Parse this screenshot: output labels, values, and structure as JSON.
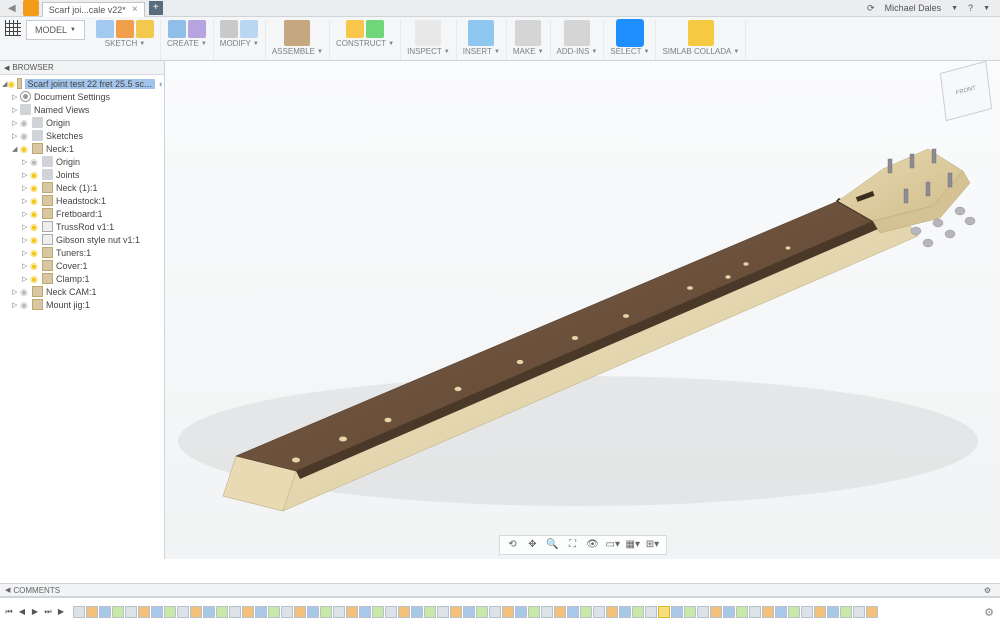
{
  "titlebar": {
    "tab_title": "Scarf joi...cale v22*",
    "user_name": "Michael Dales"
  },
  "toolbar": {
    "model_label": "MODEL",
    "groups": [
      {
        "label": "SKETCH",
        "colors": [
          "#a3c9f0",
          "#f29e4c",
          "#f2c94c"
        ]
      },
      {
        "label": "CREATE",
        "colors": [
          "#8fbfe8",
          "#b7a3e0"
        ]
      },
      {
        "label": "MODIFY",
        "colors": [
          "#c9c9c9",
          "#b9d7f0"
        ]
      },
      {
        "label": "ASSEMBLE",
        "colors": [
          "#c5a880"
        ]
      },
      {
        "label": "CONSTRUCT",
        "colors": [
          "#fac64b",
          "#6fd67a"
        ]
      },
      {
        "label": "INSPECT",
        "colors": [
          "#e8e8e8"
        ]
      },
      {
        "label": "INSERT",
        "colors": [
          "#8ec8f0"
        ]
      },
      {
        "label": "MAKE",
        "colors": [
          "#d5d5d5"
        ]
      },
      {
        "label": "ADD-INS",
        "colors": [
          "#d5d5d5"
        ]
      },
      {
        "label": "SELECT",
        "colors": [
          "#1f8fff"
        ],
        "highlight": true
      },
      {
        "label": "SIMLAB COLLADA",
        "colors": [
          "#f5c942"
        ]
      }
    ]
  },
  "browser": {
    "header": "BROWSER",
    "root": "Scarf joint test 22 fret 25.5 sc...",
    "items": [
      {
        "label": "Document Settings",
        "pad": 1,
        "tri": "closed",
        "ico": "gear"
      },
      {
        "label": "Named Views",
        "pad": 1,
        "tri": "closed",
        "ico": "folder"
      },
      {
        "label": "Origin",
        "pad": 1,
        "tri": "closed",
        "ico": "folder",
        "bulb": "off"
      },
      {
        "label": "Sketches",
        "pad": 1,
        "tri": "closed",
        "ico": "folder",
        "bulb": "off"
      },
      {
        "label": "Neck:1",
        "pad": 1,
        "tri": "open",
        "ico": "comp",
        "bulb": "on"
      },
      {
        "label": "Origin",
        "pad": 2,
        "tri": "closed",
        "ico": "folder",
        "bulb": "off"
      },
      {
        "label": "Joints",
        "pad": 2,
        "tri": "closed",
        "ico": "folder",
        "bulb": "on"
      },
      {
        "label": "Neck (1):1",
        "pad": 2,
        "tri": "closed",
        "ico": "comp",
        "bulb": "on"
      },
      {
        "label": "Headstock:1",
        "pad": 2,
        "tri": "closed",
        "ico": "comp",
        "bulb": "on"
      },
      {
        "label": "Fretboard:1",
        "pad": 2,
        "tri": "closed",
        "ico": "comp",
        "bulb": "on"
      },
      {
        "label": "TrussRod v1:1",
        "pad": 2,
        "tri": "closed",
        "ico": "link",
        "bulb": "on"
      },
      {
        "label": "Gibson style nut v1:1",
        "pad": 2,
        "tri": "closed",
        "ico": "link",
        "bulb": "on"
      },
      {
        "label": "Tuners:1",
        "pad": 2,
        "tri": "closed",
        "ico": "comp",
        "bulb": "on"
      },
      {
        "label": "Cover:1",
        "pad": 2,
        "tri": "closed",
        "ico": "comp",
        "bulb": "on"
      },
      {
        "label": "Clamp:1",
        "pad": 2,
        "tri": "closed",
        "ico": "comp",
        "bulb": "on"
      },
      {
        "label": "Neck CAM:1",
        "pad": 1,
        "tri": "closed",
        "ico": "comp",
        "bulb": "off"
      },
      {
        "label": "Mount jig:1",
        "pad": 1,
        "tri": "closed",
        "ico": "comp",
        "bulb": "off"
      }
    ]
  },
  "comments": {
    "label": "COMMENTS"
  },
  "timeline": {
    "controls": [
      "⏮",
      "◀",
      "▶",
      "⏭",
      "▶"
    ],
    "feature_count": 62,
    "highlight_index": 45
  },
  "viewcube_face": "FRONT",
  "guitar": {
    "fretboard_color": "#6a4e3b",
    "neck_color": "#e8d9b5",
    "headstock_color": "#e3d2ab",
    "dot_color": "#e6d4a8",
    "tuner_color": "#8c8c92"
  }
}
